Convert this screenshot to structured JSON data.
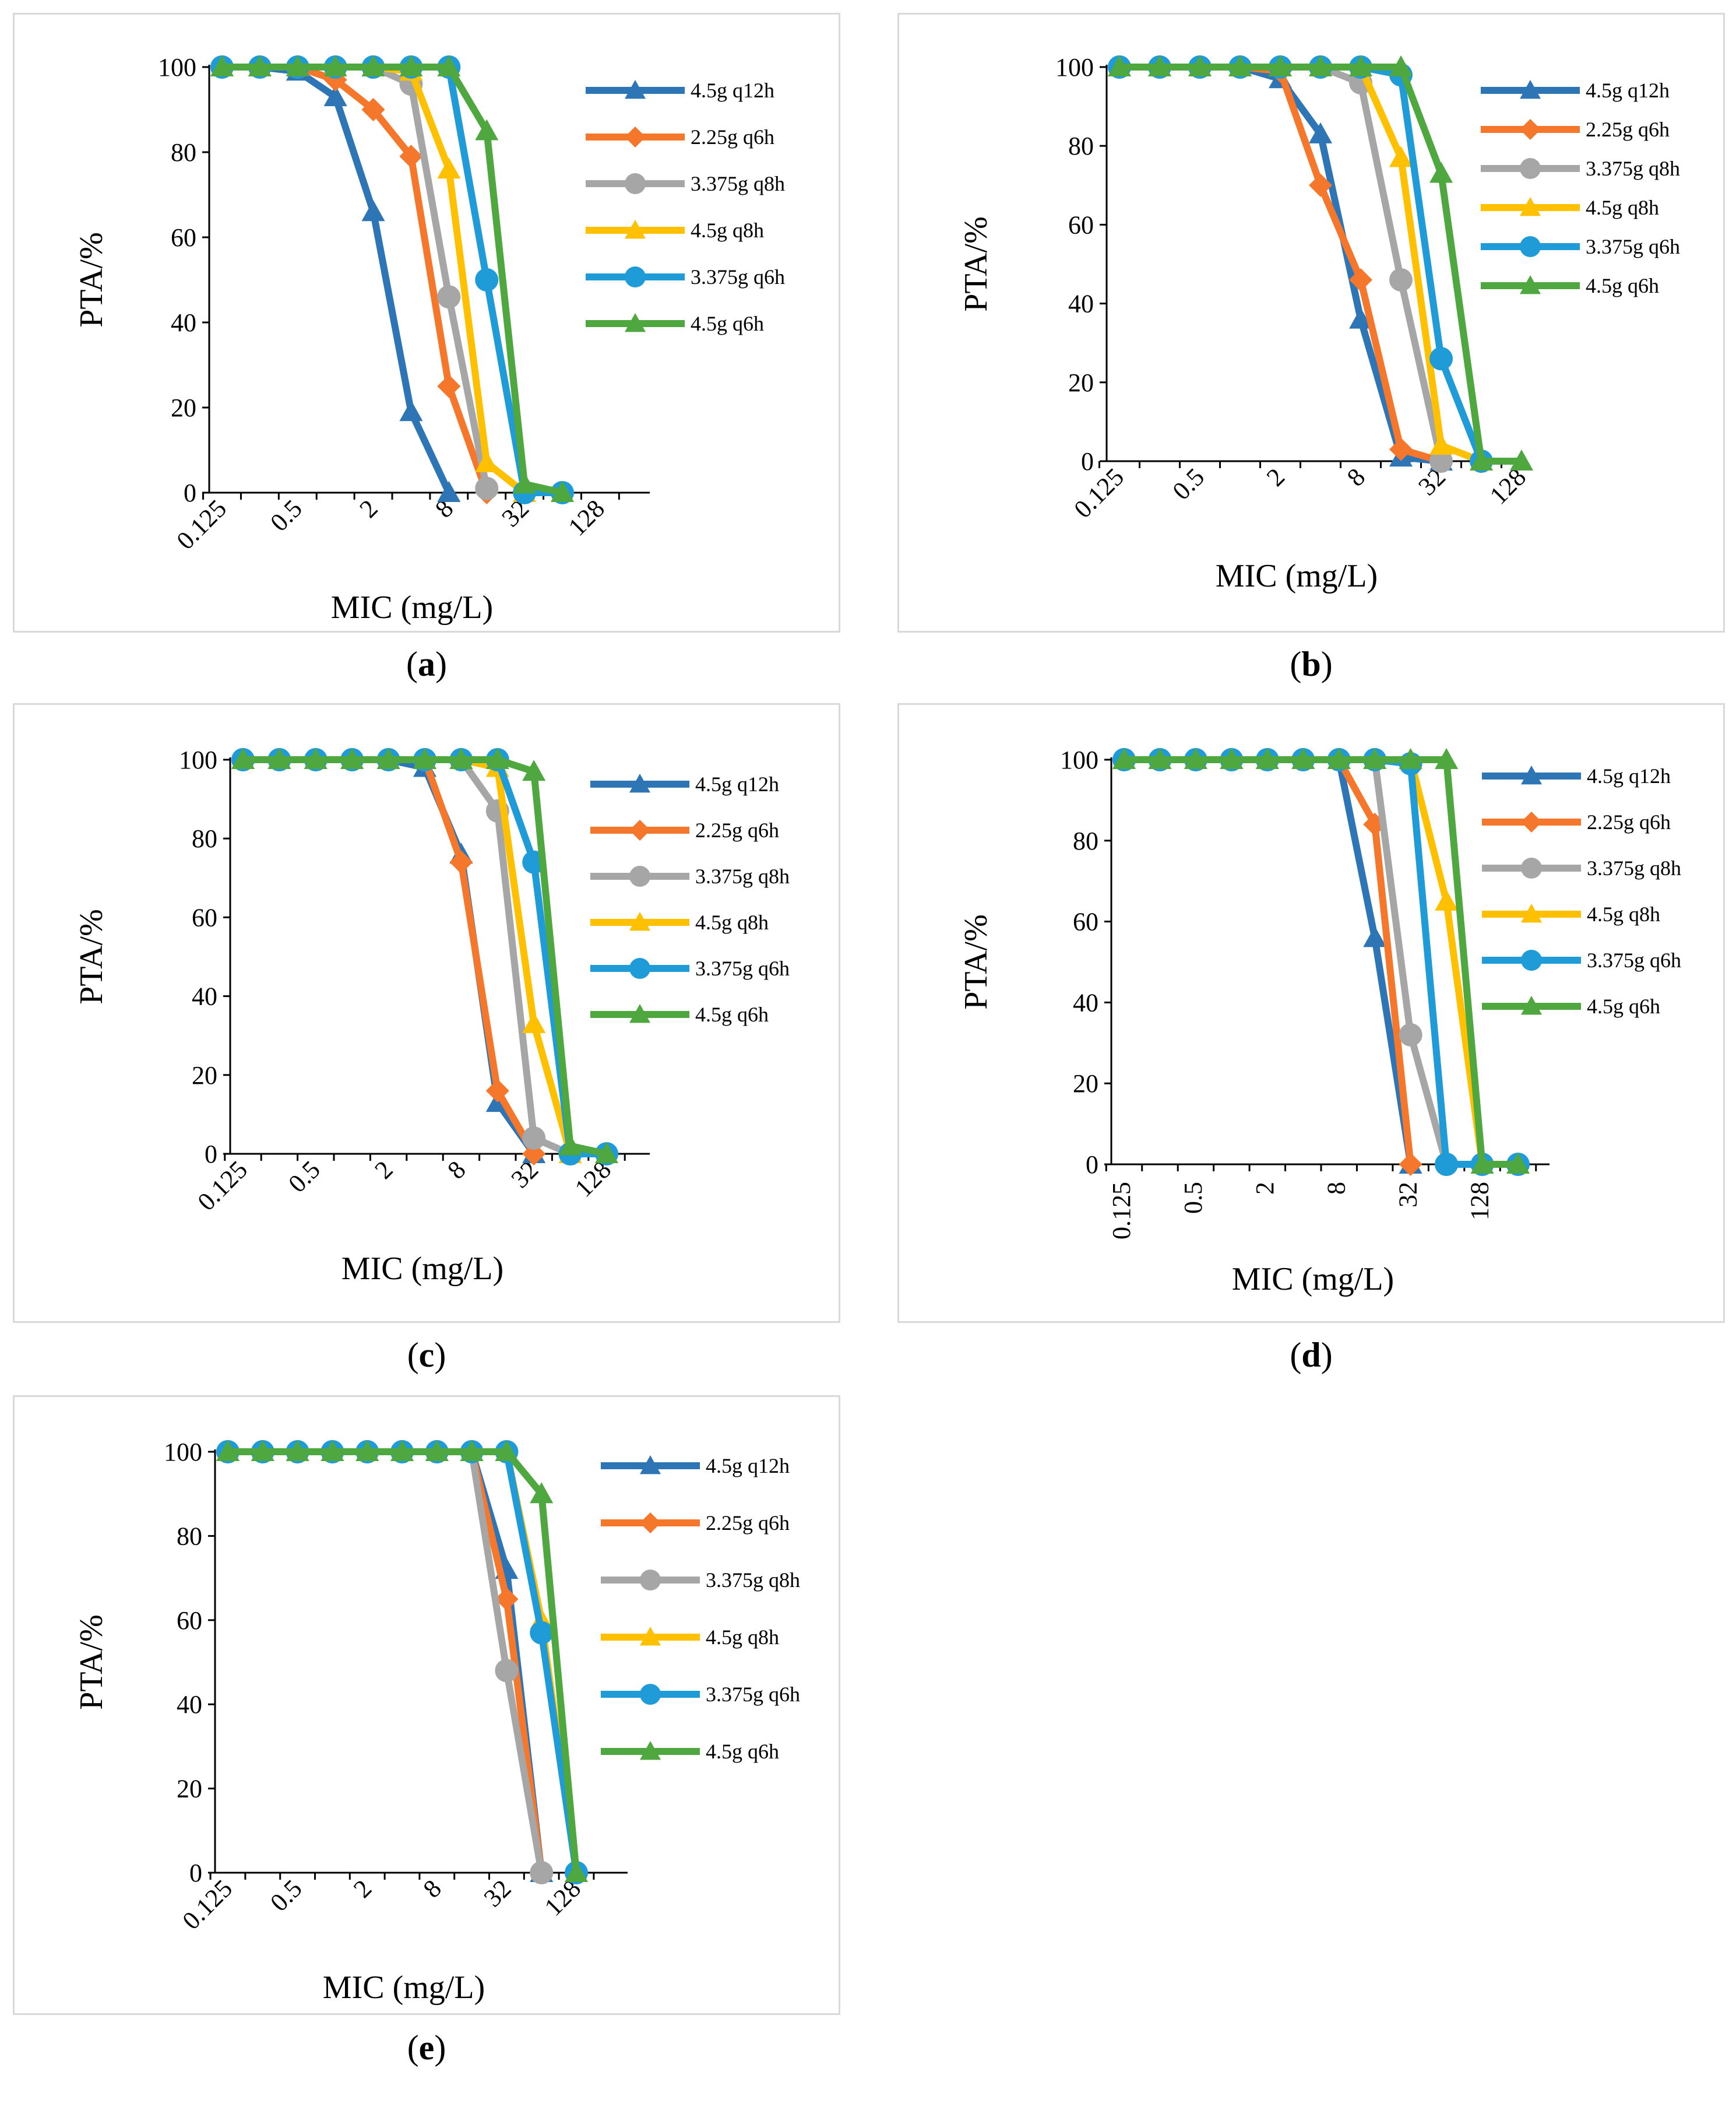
{
  "figure": {
    "xlabel": "MIC (mg/L)",
    "ylabel": "PTA/%",
    "xticks": [
      "0.125",
      "0.5",
      "2",
      "8",
      "32",
      "128"
    ],
    "yticks": [
      "0",
      "20",
      "40",
      "60",
      "80",
      "100"
    ]
  },
  "colors": {
    "s1": "#2e75b6",
    "s2": "#f4772b",
    "s3": "#a6a6a6",
    "s4": "#ffc000",
    "s5": "#1f9bd7",
    "s6": "#4ea73f"
  },
  "chart_data": [
    {
      "type": "line",
      "panel": "a",
      "xscale": "log2",
      "xlabel": "MIC (mg/L)",
      "ylabel": "PTA/%",
      "ylim": [
        0,
        100
      ],
      "x": [
        0.125,
        0.25,
        0.5,
        1,
        2,
        4,
        8,
        16,
        32,
        64
      ],
      "series": [
        {
          "name": "4.5g q12h",
          "marker": "triangle",
          "values": [
            100,
            100,
            99,
            93,
            66,
            19,
            0,
            null,
            null,
            null
          ]
        },
        {
          "name": "2.25g q6h",
          "marker": "diamond",
          "values": [
            100,
            100,
            100,
            97,
            90,
            79,
            25,
            0,
            null,
            null
          ]
        },
        {
          "name": "3.375g q8h",
          "marker": "circle",
          "values": [
            100,
            100,
            100,
            100,
            100,
            96,
            46,
            1,
            null,
            null
          ]
        },
        {
          "name": "4.5g q8h",
          "marker": "triangle",
          "values": [
            100,
            100,
            100,
            100,
            100,
            99,
            76,
            7,
            0,
            null
          ]
        },
        {
          "name": "3.375g q6h",
          "marker": "circle",
          "values": [
            100,
            100,
            100,
            100,
            100,
            100,
            100,
            50,
            0,
            0
          ]
        },
        {
          "name": "4.5g q6h",
          "marker": "triangle",
          "values": [
            100,
            100,
            100,
            100,
            100,
            100,
            100,
            85,
            2,
            0
          ]
        }
      ]
    },
    {
      "type": "line",
      "panel": "b",
      "xscale": "log2",
      "xlabel": "MIC (mg/L)",
      "ylabel": "PTA/%",
      "ylim": [
        0,
        100
      ],
      "x": [
        0.125,
        0.25,
        0.5,
        1,
        2,
        4,
        8,
        16,
        32,
        64,
        128
      ],
      "series": [
        {
          "name": "4.5g q12h",
          "marker": "triangle",
          "values": [
            100,
            100,
            100,
            100,
            97,
            83,
            36,
            1,
            0,
            null,
            null
          ]
        },
        {
          "name": "2.25g q6h",
          "marker": "diamond",
          "values": [
            100,
            100,
            100,
            100,
            99,
            70,
            46,
            3,
            0,
            null,
            null
          ]
        },
        {
          "name": "3.375g q8h",
          "marker": "circle",
          "values": [
            100,
            100,
            100,
            100,
            100,
            100,
            96,
            46,
            0,
            null,
            null
          ]
        },
        {
          "name": "4.5g q8h",
          "marker": "triangle",
          "values": [
            100,
            100,
            100,
            100,
            100,
            100,
            100,
            77,
            4,
            0,
            null
          ]
        },
        {
          "name": "3.375g q6h",
          "marker": "circle",
          "values": [
            100,
            100,
            100,
            100,
            100,
            100,
            100,
            98,
            26,
            0,
            null
          ]
        },
        {
          "name": "4.5g q6h",
          "marker": "triangle",
          "values": [
            100,
            100,
            100,
            100,
            100,
            100,
            100,
            100,
            73,
            0,
            0
          ]
        }
      ]
    },
    {
      "type": "line",
      "panel": "c",
      "xscale": "log2",
      "xlabel": "MIC (mg/L)",
      "ylabel": "PTA/%",
      "ylim": [
        0,
        100
      ],
      "x": [
        0.125,
        0.25,
        0.5,
        1,
        2,
        4,
        8,
        16,
        32,
        64,
        128
      ],
      "series": [
        {
          "name": "4.5g q12h",
          "marker": "triangle",
          "values": [
            100,
            100,
            100,
            100,
            100,
            98,
            76,
            13,
            0,
            null,
            null
          ]
        },
        {
          "name": "2.25g q6h",
          "marker": "diamond",
          "values": [
            100,
            100,
            100,
            100,
            100,
            100,
            74,
            16,
            0,
            null,
            null
          ]
        },
        {
          "name": "3.375g q8h",
          "marker": "circle",
          "values": [
            100,
            100,
            100,
            100,
            100,
            100,
            100,
            87,
            4,
            0,
            null
          ]
        },
        {
          "name": "4.5g q8h",
          "marker": "triangle",
          "values": [
            100,
            100,
            100,
            100,
            100,
            100,
            100,
            98,
            33,
            0,
            null
          ]
        },
        {
          "name": "3.375g q6h",
          "marker": "circle",
          "values": [
            100,
            100,
            100,
            100,
            100,
            100,
            100,
            100,
            74,
            0,
            0
          ]
        },
        {
          "name": "4.5g q6h",
          "marker": "triangle",
          "values": [
            100,
            100,
            100,
            100,
            100,
            100,
            100,
            100,
            97,
            2,
            0
          ]
        }
      ]
    },
    {
      "type": "line",
      "panel": "d",
      "xscale": "log2",
      "xlabel": "MIC (mg/L)",
      "ylabel": "PTA/%",
      "ylim": [
        0,
        100
      ],
      "x": [
        0.125,
        0.25,
        0.5,
        1,
        2,
        4,
        8,
        16,
        32,
        64,
        128,
        256
      ],
      "series": [
        {
          "name": "4.5g q12h",
          "marker": "triangle",
          "values": [
            100,
            100,
            100,
            100,
            100,
            100,
            100,
            56,
            0,
            null,
            null,
            null
          ]
        },
        {
          "name": "2.25g q6h",
          "marker": "diamond",
          "values": [
            100,
            100,
            100,
            100,
            100,
            100,
            100,
            84,
            0,
            null,
            null,
            null
          ]
        },
        {
          "name": "3.375g q8h",
          "marker": "circle",
          "values": [
            100,
            100,
            100,
            100,
            100,
            100,
            100,
            100,
            32,
            0,
            null,
            null
          ]
        },
        {
          "name": "4.5g q8h",
          "marker": "triangle",
          "values": [
            100,
            100,
            100,
            100,
            100,
            100,
            100,
            100,
            100,
            65,
            0,
            null
          ]
        },
        {
          "name": "3.375g q6h",
          "marker": "circle",
          "values": [
            100,
            100,
            100,
            100,
            100,
            100,
            100,
            100,
            99,
            0,
            0,
            0
          ]
        },
        {
          "name": "4.5g q6h",
          "marker": "triangle",
          "values": [
            100,
            100,
            100,
            100,
            100,
            100,
            100,
            100,
            100,
            100,
            0,
            0
          ]
        }
      ]
    },
    {
      "type": "line",
      "panel": "e",
      "xscale": "log2",
      "xlabel": "MIC (mg/L)",
      "ylabel": "PTA/%",
      "ylim": [
        0,
        100
      ],
      "x": [
        0.125,
        0.25,
        0.5,
        1,
        2,
        4,
        8,
        16,
        32,
        64,
        128
      ],
      "series": [
        {
          "name": "4.5g q12h",
          "marker": "triangle",
          "values": [
            100,
            100,
            100,
            100,
            100,
            100,
            100,
            100,
            72,
            0,
            null
          ]
        },
        {
          "name": "2.25g q6h",
          "marker": "diamond",
          "values": [
            100,
            100,
            100,
            100,
            100,
            100,
            100,
            100,
            65,
            0,
            null
          ]
        },
        {
          "name": "3.375g q8h",
          "marker": "circle",
          "values": [
            100,
            100,
            100,
            100,
            100,
            100,
            100,
            100,
            48,
            0,
            null
          ]
        },
        {
          "name": "4.5g q8h",
          "marker": "triangle",
          "values": [
            100,
            100,
            100,
            100,
            100,
            100,
            100,
            100,
            100,
            60,
            0
          ]
        },
        {
          "name": "3.375g q6h",
          "marker": "circle",
          "values": [
            100,
            100,
            100,
            100,
            100,
            100,
            100,
            100,
            100,
            57,
            0
          ]
        },
        {
          "name": "4.5g q6h",
          "marker": "triangle",
          "values": [
            100,
            100,
            100,
            100,
            100,
            100,
            100,
            100,
            100,
            90,
            0
          ]
        }
      ]
    }
  ],
  "panels": [
    {
      "id": "a",
      "caption": "a"
    },
    {
      "id": "b",
      "caption": "b"
    },
    {
      "id": "c",
      "caption": "c"
    },
    {
      "id": "d",
      "caption": "d"
    },
    {
      "id": "e",
      "caption": "e"
    }
  ]
}
